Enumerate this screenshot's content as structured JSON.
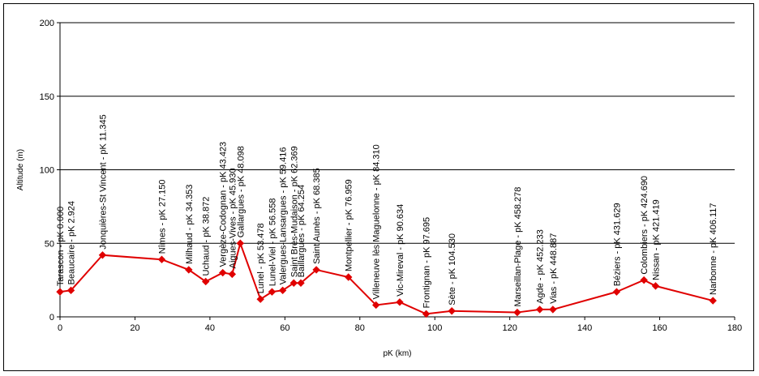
{
  "chart_data": {
    "type": "line",
    "title": "",
    "xlabel": "pK (km)",
    "ylabel": "Altitude (m)",
    "xlim": [
      0,
      180
    ],
    "ylim": [
      0,
      200
    ],
    "xticks": [
      0,
      20,
      40,
      60,
      80,
      100,
      120,
      140,
      160,
      180
    ],
    "yticks": [
      0,
      50,
      100,
      150,
      200
    ],
    "grid": "horizontal",
    "legend": "none",
    "line_color": "#e00000",
    "marker": "diamond",
    "series": [
      {
        "points": [
          {
            "x": 0.0,
            "y": 17,
            "label": "Tarascon - pK 0.000"
          },
          {
            "x": 2.924,
            "y": 18,
            "label": "Beaucaire - pK 2.924"
          },
          {
            "x": 11.345,
            "y": 42,
            "label": "Jonquières-St Vincent - pK 11.345"
          },
          {
            "x": 27.15,
            "y": 39,
            "label": "Nîmes - pK 27.150"
          },
          {
            "x": 34.353,
            "y": 32,
            "label": "Milhaud - pK 34.353"
          },
          {
            "x": 38.872,
            "y": 24,
            "label": "Uchaud - pK 38.872"
          },
          {
            "x": 43.423,
            "y": 30,
            "label": "Vergèze-Codognan - pK 43.423"
          },
          {
            "x": 45.93,
            "y": 29,
            "label": "Aigues-Vives - pK 45.930"
          },
          {
            "x": 48.098,
            "y": 50,
            "label": "Gallargues - pK 48.098"
          },
          {
            "x": 53.478,
            "y": 12,
            "label": "Lunel - pK 53.478"
          },
          {
            "x": 56.558,
            "y": 17,
            "label": "Lunel-Viel - pK 56.558"
          },
          {
            "x": 59.416,
            "y": 18,
            "label": "Valergues-Lansargues - pK 59.416"
          },
          {
            "x": 62.369,
            "y": 23,
            "label": "Saint Brès-Mudaison - pK 62.369"
          },
          {
            "x": 64.254,
            "y": 23,
            "label": "Baillargues - pK 64.254"
          },
          {
            "x": 68.385,
            "y": 32,
            "label": "Saint Aunès - pK 68.385"
          },
          {
            "x": 76.959,
            "y": 27,
            "label": "Montpellier - pK 76.959"
          },
          {
            "x": 84.31,
            "y": 8,
            "label": "Villeneuve lès Maguelonne - pK 84.310"
          },
          {
            "x": 90.634,
            "y": 10,
            "label": "Vic-Mireval - pK 90.634"
          },
          {
            "x": 97.695,
            "y": 2,
            "label": "Frontignan - pK 97.695"
          },
          {
            "x": 104.53,
            "y": 4,
            "label": "Sète - pK 104.530"
          },
          {
            "x": 122.0,
            "y": 3,
            "label": "Marseillan-Plage - pK 458.278"
          },
          {
            "x": 128.0,
            "y": 5,
            "label": "Agde - pK 452.233"
          },
          {
            "x": 131.5,
            "y": 5,
            "label": "Vias - pK 448.887"
          },
          {
            "x": 148.5,
            "y": 17,
            "label": "Béziers - pK 431.629"
          },
          {
            "x": 155.8,
            "y": 25,
            "label": "Colombiers - pK 424.690"
          },
          {
            "x": 158.9,
            "y": 21,
            "label": "Nissan - pK 421.419"
          },
          {
            "x": 174.2,
            "y": 11,
            "label": "Narbonne - pK 406.117"
          }
        ]
      }
    ]
  }
}
